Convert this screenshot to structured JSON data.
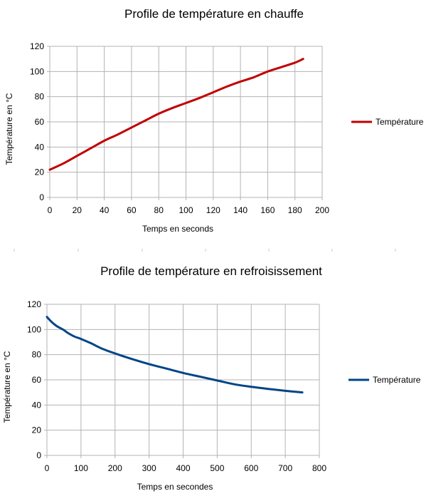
{
  "chart_data": [
    {
      "type": "line",
      "title": "Profile de température en chauffe",
      "xlabel": "Temps en seconds",
      "ylabel": "Température en °C",
      "xlim": [
        0,
        200
      ],
      "ylim": [
        0,
        120
      ],
      "xticks": [
        0,
        20,
        40,
        60,
        80,
        100,
        120,
        140,
        160,
        180,
        200
      ],
      "yticks": [
        0,
        20,
        40,
        60,
        80,
        100,
        120
      ],
      "grid": true,
      "legend_position": "right",
      "series": [
        {
          "name": "Température",
          "color": "#c00000",
          "x": [
            0,
            10,
            20,
            30,
            40,
            50,
            60,
            70,
            80,
            90,
            100,
            110,
            120,
            130,
            140,
            150,
            160,
            170,
            180,
            186
          ],
          "y": [
            22,
            27,
            33,
            39,
            45,
            50,
            55.5,
            61,
            66.5,
            71,
            75,
            79,
            83.5,
            88,
            92,
            95.5,
            100,
            103.5,
            107,
            110
          ]
        }
      ]
    },
    {
      "type": "line",
      "title": "Profile de température en refroisissement",
      "xlabel": "Temps en secondes",
      "ylabel": "Température en °C",
      "xlim": [
        0,
        800
      ],
      "ylim": [
        0,
        120
      ],
      "xticks": [
        0,
        100,
        200,
        300,
        400,
        500,
        600,
        700,
        800
      ],
      "yticks": [
        0,
        20,
        40,
        60,
        80,
        100,
        120
      ],
      "grid": true,
      "legend_position": "right",
      "series": [
        {
          "name": "Température",
          "color": "#004586",
          "x": [
            0,
            10,
            20,
            30,
            50,
            60,
            80,
            100,
            130,
            160,
            200,
            250,
            300,
            350,
            400,
            450,
            500,
            550,
            600,
            650,
            700,
            750
          ],
          "y": [
            110,
            107,
            104.5,
            102.5,
            99.5,
            97.5,
            94.5,
            92.5,
            89,
            85,
            81,
            76.5,
            72.5,
            69,
            65.5,
            62.5,
            59.5,
            56.5,
            54.5,
            52.8,
            51.3,
            50
          ]
        }
      ]
    }
  ]
}
